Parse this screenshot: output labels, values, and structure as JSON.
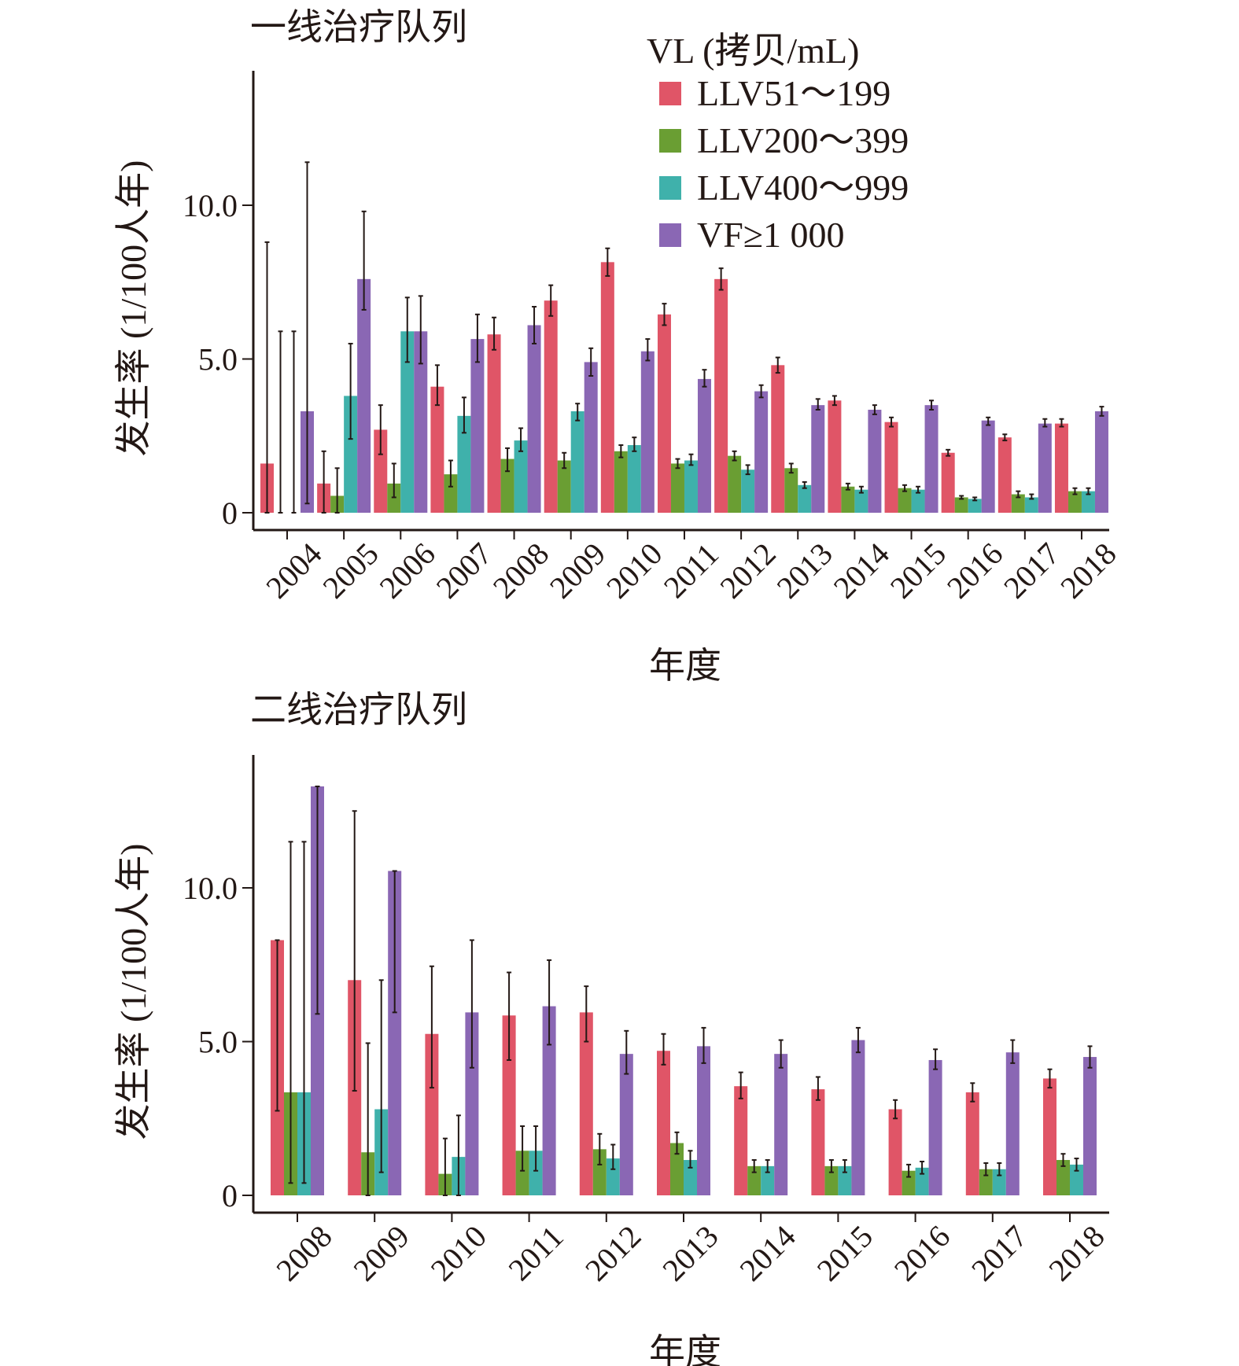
{
  "legend": {
    "title": "VL (拷贝/mL)",
    "items": [
      "LLV51～199",
      "LLV200～399",
      "LLV400～999",
      "VF≥1 000"
    ],
    "colors": [
      "#e05567",
      "#6a9e33",
      "#3fb1ab",
      "#8a67b4"
    ]
  },
  "chart_data": [
    {
      "type": "bar",
      "title": "一线治疗队列",
      "xlabel": "年度",
      "ylabel": "发生率 (1/100人年)",
      "ylim": [
        0,
        14
      ],
      "yticks": [
        0,
        5.0,
        10.0
      ],
      "ytick_labels": [
        "0",
        "5.0",
        "10.0"
      ],
      "grid": false,
      "legend_position": "top-right",
      "categories": [
        "2004",
        "2005",
        "2006",
        "2007",
        "2008",
        "2009",
        "2010",
        "2011",
        "2012",
        "2013",
        "2014",
        "2015",
        "2016",
        "2017",
        "2018"
      ],
      "series": [
        {
          "name": "LLV51～199",
          "values": [
            1.6,
            0.95,
            2.7,
            4.1,
            5.8,
            6.9,
            8.15,
            6.45,
            7.6,
            4.8,
            3.65,
            2.95,
            1.95,
            2.45,
            2.9
          ],
          "err_low": [
            0.0,
            0.0,
            1.9,
            3.5,
            5.3,
            6.4,
            7.7,
            6.1,
            7.25,
            4.55,
            3.5,
            2.8,
            1.85,
            2.35,
            2.8
          ],
          "err_high": [
            8.8,
            2.0,
            3.5,
            4.8,
            6.35,
            7.4,
            8.6,
            6.8,
            7.95,
            5.05,
            3.8,
            3.1,
            2.05,
            2.55,
            3.05
          ]
        },
        {
          "name": "LLV200～399",
          "values": [
            0.0,
            0.55,
            0.95,
            1.25,
            1.75,
            1.7,
            2.0,
            1.6,
            1.85,
            1.45,
            0.85,
            0.8,
            0.5,
            0.6,
            0.7
          ],
          "err_low": [
            0.0,
            0.0,
            0.5,
            0.85,
            1.35,
            1.45,
            1.8,
            1.45,
            1.7,
            1.3,
            0.75,
            0.7,
            0.45,
            0.5,
            0.6
          ],
          "err_high": [
            5.9,
            1.45,
            1.6,
            1.7,
            2.1,
            1.95,
            2.2,
            1.75,
            2.0,
            1.6,
            0.95,
            0.9,
            0.55,
            0.7,
            0.8
          ]
        },
        {
          "name": "LLV400～999",
          "values": [
            0.0,
            3.8,
            5.9,
            3.15,
            2.35,
            3.3,
            2.2,
            1.7,
            1.4,
            0.9,
            0.75,
            0.75,
            0.45,
            0.5,
            0.7
          ],
          "err_low": [
            0.0,
            2.4,
            4.9,
            2.6,
            2.0,
            3.0,
            2.0,
            1.55,
            1.25,
            0.8,
            0.65,
            0.65,
            0.4,
            0.45,
            0.6
          ],
          "err_high": [
            5.9,
            5.5,
            7.0,
            3.75,
            2.75,
            3.55,
            2.45,
            1.9,
            1.55,
            1.0,
            0.85,
            0.85,
            0.5,
            0.6,
            0.8
          ]
        },
        {
          "name": "VF≥1 000",
          "values": [
            3.3,
            7.6,
            5.9,
            5.65,
            6.1,
            4.9,
            5.25,
            4.35,
            3.95,
            3.5,
            3.35,
            3.5,
            3.0,
            2.9,
            3.3
          ],
          "err_low": [
            0.3,
            6.6,
            4.85,
            4.9,
            5.5,
            4.45,
            4.95,
            4.1,
            3.75,
            3.35,
            3.2,
            3.35,
            2.85,
            2.8,
            3.15
          ],
          "err_high": [
            11.4,
            9.8,
            7.05,
            6.45,
            6.7,
            5.35,
            5.65,
            4.65,
            4.15,
            3.7,
            3.5,
            3.65,
            3.1,
            3.05,
            3.45
          ]
        }
      ]
    },
    {
      "type": "bar",
      "title": "二线治疗队列",
      "xlabel": "年度",
      "ylabel": "发生率 (1/100人年)",
      "ylim": [
        0,
        14
      ],
      "yticks": [
        0,
        5.0,
        10.0
      ],
      "ytick_labels": [
        "0",
        "5.0",
        "10.0"
      ],
      "grid": false,
      "categories": [
        "2008",
        "2009",
        "2010",
        "2011",
        "2012",
        "2013",
        "2014",
        "2015",
        "2016",
        "2017",
        "2018"
      ],
      "series": [
        {
          "name": "LLV51～199",
          "values": [
            8.3,
            7.0,
            5.25,
            5.85,
            5.95,
            4.7,
            3.55,
            3.45,
            2.8,
            3.35,
            3.8
          ],
          "err_low": [
            2.75,
            3.4,
            3.5,
            4.4,
            5.0,
            4.25,
            3.15,
            3.1,
            2.5,
            3.05,
            3.5
          ],
          "err_high": [
            8.3,
            12.5,
            7.45,
            7.25,
            6.8,
            5.25,
            4.0,
            3.85,
            3.1,
            3.65,
            4.1
          ]
        },
        {
          "name": "LLV200～399",
          "values": [
            3.35,
            1.4,
            0.7,
            1.45,
            1.5,
            1.7,
            0.95,
            0.95,
            0.8,
            0.85,
            1.15
          ],
          "err_low": [
            0.4,
            0.0,
            0.0,
            0.8,
            1.0,
            1.35,
            0.75,
            0.75,
            0.6,
            0.65,
            0.95
          ],
          "err_high": [
            11.5,
            4.95,
            1.85,
            2.25,
            2.0,
            2.05,
            1.15,
            1.15,
            1.0,
            1.05,
            1.35
          ]
        },
        {
          "name": "LLV400～999",
          "values": [
            3.35,
            2.8,
            1.25,
            1.45,
            1.2,
            1.15,
            0.95,
            0.95,
            0.9,
            0.85,
            1.0
          ],
          "err_low": [
            0.4,
            0.75,
            0.0,
            0.8,
            0.85,
            0.9,
            0.75,
            0.75,
            0.7,
            0.65,
            0.8
          ],
          "err_high": [
            11.5,
            7.0,
            2.6,
            2.25,
            1.65,
            1.45,
            1.15,
            1.15,
            1.1,
            1.05,
            1.2
          ]
        },
        {
          "name": "VF≥1 000",
          "values": [
            13.3,
            10.55,
            5.95,
            6.15,
            4.6,
            4.85,
            4.6,
            5.05,
            4.4,
            4.65,
            4.5
          ],
          "err_low": [
            5.9,
            5.95,
            4.15,
            4.9,
            3.95,
            4.3,
            4.15,
            4.65,
            4.1,
            4.3,
            4.15
          ],
          "err_high": [
            13.3,
            10.55,
            8.3,
            7.65,
            5.35,
            5.45,
            5.05,
            5.45,
            4.75,
            5.05,
            4.85
          ]
        }
      ]
    }
  ]
}
